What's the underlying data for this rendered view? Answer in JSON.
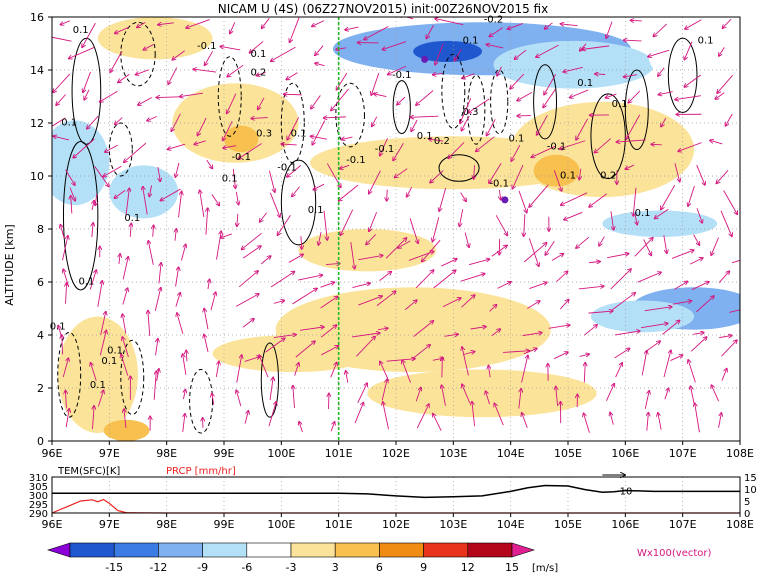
{
  "title": "NICAM U (4S) (06Z27NOV2015) init:00Z26NOV2015 fix",
  "chart_data": [
    {
      "type": "heatmap",
      "name": "zonal-wind-cross-section",
      "ylabel": "ALTITUDE [km]",
      "xlim": [
        96,
        108
      ],
      "ylim": [
        0,
        16
      ],
      "x_ticks": [
        "96E",
        "97E",
        "98E",
        "99E",
        "100E",
        "101E",
        "102E",
        "103E",
        "104E",
        "105E",
        "106E",
        "107E",
        "108E"
      ],
      "y_ticks": [
        "0",
        "2",
        "4",
        "6",
        "8",
        "10",
        "12",
        "14",
        "16"
      ],
      "grid": true,
      "marker_line_x": 101,
      "marker_line_color": "#22bb22",
      "shaded_regions": [
        {
          "x": 101.8,
          "y": 4.0,
          "rx": 0.8,
          "ry": 1.2,
          "value": 9
        },
        {
          "x": 102.1,
          "y": 4.3,
          "rx": 0.4,
          "ry": 0.5,
          "value": 12
        },
        {
          "x": 102.3,
          "y": 4.2,
          "rx": 2.4,
          "ry": 1.6,
          "value": 4
        },
        {
          "x": 100.2,
          "y": 3.3,
          "rx": 1.4,
          "ry": 0.7,
          "value": 4
        },
        {
          "x": 103.5,
          "y": 1.8,
          "rx": 2.0,
          "ry": 0.9,
          "value": 4
        },
        {
          "x": 101.5,
          "y": 7.2,
          "rx": 1.2,
          "ry": 0.8,
          "value": 5
        },
        {
          "x": 103.0,
          "y": 10.5,
          "rx": 2.5,
          "ry": 1.0,
          "value": 4
        },
        {
          "x": 105.6,
          "y": 11.0,
          "rx": 1.6,
          "ry": 1.8,
          "value": 4
        },
        {
          "x": 104.8,
          "y": 10.2,
          "rx": 0.4,
          "ry": 0.6,
          "value": 8
        },
        {
          "x": 99.2,
          "y": 12.0,
          "rx": 1.1,
          "ry": 1.5,
          "value": 4
        },
        {
          "x": 99.3,
          "y": 11.4,
          "rx": 0.3,
          "ry": 0.5,
          "value": 8
        },
        {
          "x": 97.8,
          "y": 15.2,
          "rx": 1.0,
          "ry": 0.8,
          "value": 4
        },
        {
          "x": 96.8,
          "y": 2.5,
          "rx": 0.7,
          "ry": 2.2,
          "value": 4
        },
        {
          "x": 97.3,
          "y": 0.4,
          "rx": 0.4,
          "ry": 0.4,
          "value": 8
        },
        {
          "x": 103.5,
          "y": 14.8,
          "rx": 2.6,
          "ry": 1.0,
          "value": -7
        },
        {
          "x": 102.9,
          "y": 14.7,
          "rx": 0.6,
          "ry": 0.4,
          "value": -13
        },
        {
          "x": 105.1,
          "y": 14.2,
          "rx": 1.4,
          "ry": 0.9,
          "value": -5
        },
        {
          "x": 107.2,
          "y": 14.6,
          "rx": 0.8,
          "ry": 1.2,
          "value": -2
        },
        {
          "x": 107.2,
          "y": 5.0,
          "rx": 1.1,
          "ry": 0.8,
          "value": -7
        },
        {
          "x": 106.3,
          "y": 4.7,
          "rx": 0.9,
          "ry": 0.6,
          "value": -3
        },
        {
          "x": 96.4,
          "y": 10.5,
          "rx": 0.6,
          "ry": 1.6,
          "value": -4
        },
        {
          "x": 97.6,
          "y": 9.4,
          "rx": 0.6,
          "ry": 1.0,
          "value": -4
        },
        {
          "x": 106.6,
          "y": 8.2,
          "rx": 1.0,
          "ry": 0.5,
          "value": -4
        },
        {
          "x": 100.3,
          "y": 15.5,
          "rx": 0.5,
          "ry": 0.5,
          "value": -2
        }
      ],
      "contour_labels": [
        {
          "x": 96.5,
          "y": 15.4,
          "text": "0.1"
        },
        {
          "x": 98.7,
          "y": 14.8,
          "text": "-0.1"
        },
        {
          "x": 99.6,
          "y": 14.5,
          "text": "0.1"
        },
        {
          "x": 99.6,
          "y": 13.8,
          "text": "0.2"
        },
        {
          "x": 96.3,
          "y": 11.9,
          "text": "0.1"
        },
        {
          "x": 99.7,
          "y": 11.5,
          "text": "0.3"
        },
        {
          "x": 100.3,
          "y": 11.5,
          "text": "0.1"
        },
        {
          "x": 100.1,
          "y": 10.2,
          "text": "-0.1"
        },
        {
          "x": 99.3,
          "y": 10.6,
          "text": "-0.1"
        },
        {
          "x": 99.1,
          "y": 9.8,
          "text": "0.1"
        },
        {
          "x": 101.3,
          "y": 10.5,
          "text": "-0.1"
        },
        {
          "x": 101.8,
          "y": 10.9,
          "text": "-0.1"
        },
        {
          "x": 102.5,
          "y": 11.4,
          "text": "0.1"
        },
        {
          "x": 102.8,
          "y": 11.2,
          "text": "0.2"
        },
        {
          "x": 103.3,
          "y": 12.3,
          "text": "0.3"
        },
        {
          "x": 104.1,
          "y": 11.3,
          "text": "0.1"
        },
        {
          "x": 104.8,
          "y": 11.0,
          "text": "-0.1"
        },
        {
          "x": 103.8,
          "y": 9.6,
          "text": "-0.1"
        },
        {
          "x": 105.0,
          "y": 9.9,
          "text": "0.1"
        },
        {
          "x": 105.7,
          "y": 9.9,
          "text": "0.2"
        },
        {
          "x": 105.9,
          "y": 12.6,
          "text": "0.1"
        },
        {
          "x": 107.4,
          "y": 15.0,
          "text": "0.1"
        },
        {
          "x": 103.3,
          "y": 15.0,
          "text": "0.1"
        },
        {
          "x": 103.7,
          "y": 15.8,
          "text": "-0.2"
        },
        {
          "x": 102.1,
          "y": 13.7,
          "text": "-0.1"
        },
        {
          "x": 105.3,
          "y": 13.4,
          "text": "0.1"
        },
        {
          "x": 96.8,
          "y": 2.0,
          "text": "0.1"
        },
        {
          "x": 97.1,
          "y": 3.3,
          "text": "0.1"
        },
        {
          "x": 97.0,
          "y": 2.9,
          "text": "0.1"
        },
        {
          "x": 100.6,
          "y": 8.6,
          "text": "0.1"
        },
        {
          "x": 97.4,
          "y": 8.3,
          "text": "0.1"
        },
        {
          "x": 96.6,
          "y": 5.9,
          "text": "0.1"
        },
        {
          "x": 96.1,
          "y": 4.2,
          "text": "0.1"
        },
        {
          "x": 106.3,
          "y": 8.5,
          "text": "0.1"
        }
      ],
      "cloud_marks": [
        {
          "x": 102.5,
          "y": 14.4
        },
        {
          "x": 103.9,
          "y": 9.1
        }
      ],
      "vector_label": "Wx100(vector)"
    },
    {
      "type": "line",
      "name": "surface-panel",
      "xlim": [
        96,
        108
      ],
      "x_ticks": [
        "96E",
        "97E",
        "98E",
        "99E",
        "100E",
        "101E",
        "102E",
        "103E",
        "104E",
        "105E",
        "106E",
        "107E",
        "108E"
      ],
      "series": [
        {
          "name": "TEM(SFC)[K]",
          "color": "#000000",
          "axis": "left",
          "ylim": [
            290,
            310
          ],
          "y_ticks": [
            "310",
            "305",
            "300",
            "295",
            "290"
          ],
          "x": [
            96,
            97,
            98,
            99,
            100,
            101,
            101.5,
            102,
            102.5,
            103,
            103.5,
            104,
            104.3,
            104.6,
            105,
            105.3,
            105.6,
            105.8,
            106,
            106.5,
            107,
            107.5,
            108
          ],
          "values": [
            301,
            301,
            301,
            301,
            301,
            301,
            300.6,
            299.5,
            298.7,
            299,
            299.5,
            302,
            304,
            305.3,
            305,
            303,
            301.5,
            301.8,
            302.5,
            302,
            302,
            302,
            302
          ]
        },
        {
          "name": "PRCP [mm/hr]",
          "color": "#ee2222",
          "axis": "right",
          "ylim": [
            0,
            15
          ],
          "y_ticks": [
            "15",
            "10",
            "5",
            "0"
          ],
          "x": [
            96,
            96.3,
            96.5,
            96.7,
            96.8,
            96.9,
            97.0,
            97.15,
            97.3,
            98,
            108
          ],
          "values": [
            0,
            3,
            5,
            5.5,
            4.7,
            5.6,
            4.0,
            1.0,
            0.1,
            0,
            0
          ]
        }
      ],
      "annotation": {
        "x": 105.9,
        "y": 302.6,
        "text": "10"
      }
    }
  ],
  "colorbar": {
    "ticks": [
      "-15",
      "-12",
      "-9",
      "-6",
      "-3",
      "3",
      "6",
      "9",
      "12",
      "15"
    ],
    "unit": "[m/s]",
    "colors": [
      "#8a00d6",
      "#1f57cf",
      "#3b7ce4",
      "#7fb0ef",
      "#b4e0f7",
      "#ffffff",
      "#fbe49a",
      "#f7c04f",
      "#f08b14",
      "#e9341c",
      "#b4061a",
      "#e02090"
    ]
  }
}
